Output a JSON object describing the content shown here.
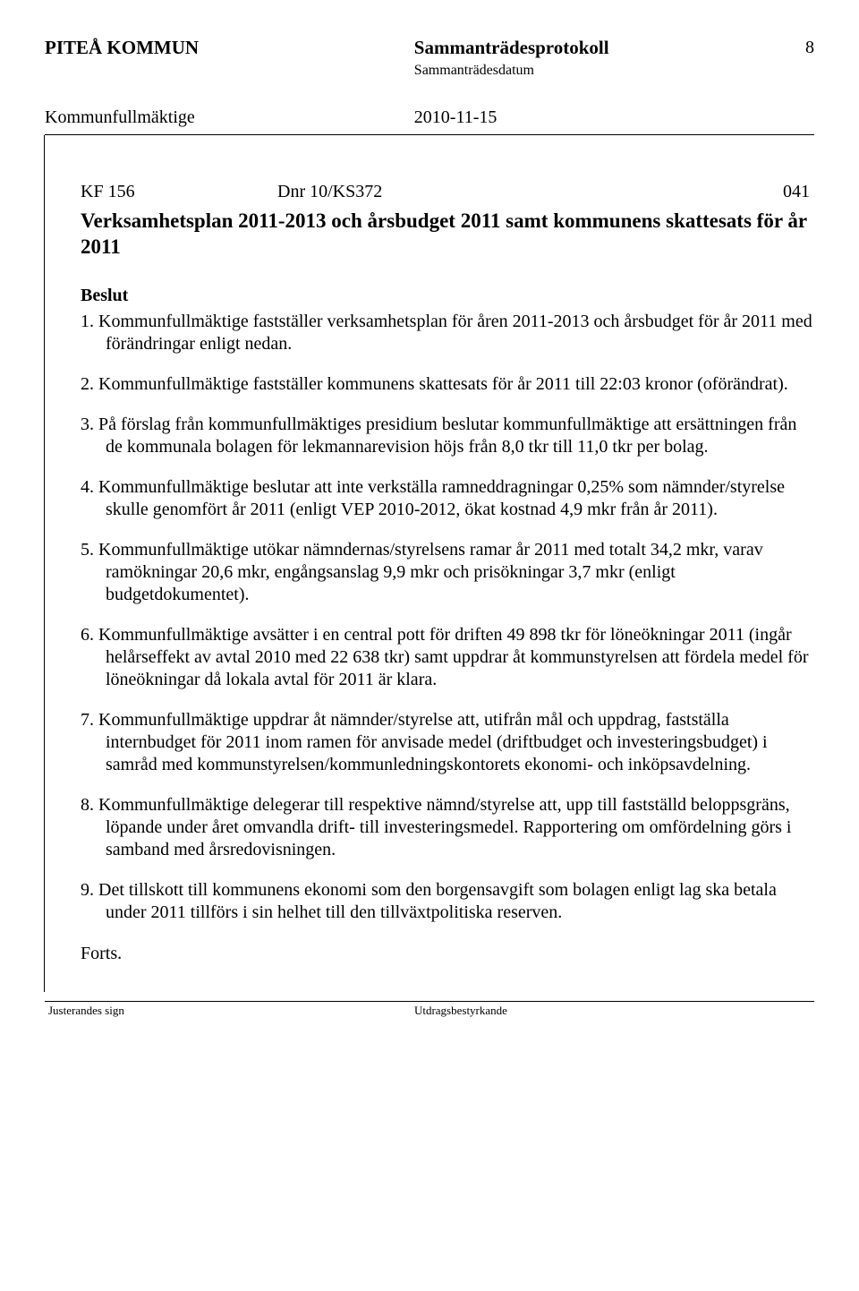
{
  "header": {
    "org": "PITEÅ KOMMUN",
    "doc_title": "Sammanträdesprotokoll",
    "page_num": "8",
    "date_label": "Sammanträdesdatum",
    "body": "Kommunfullmäktige",
    "date": "2010-11-15"
  },
  "meta": {
    "kf": "KF  156",
    "dnr": "Dnr 10/KS372",
    "code": "041"
  },
  "title": "Verksamhetsplan 2011-2013 och årsbudget 2011 samt kommunens skattesats för år 2011",
  "subhead": "Beslut",
  "items": [
    "1. Kommunfullmäktige fastställer verksamhetsplan för åren 2011-2013 och årsbudget för år 2011 med förändringar enligt nedan.",
    "2. Kommunfullmäktige fastställer kommunens skattesats för år 2011 till 22:03 kronor (oförändrat).",
    "3. På förslag från kommunfullmäktiges presidium beslutar kommunfullmäktige att ersättningen från de kommunala bolagen för lekmannarevision höjs från 8,0 tkr till 11,0 tkr per bolag.",
    "4. Kommunfullmäktige beslutar att inte verkställa ramneddragningar 0,25% som nämnder/styrelse skulle genomfört år 2011 (enligt VEP 2010-2012, ökat kostnad 4,9 mkr från år 2011).",
    "5. Kommunfullmäktige utökar nämndernas/styrelsens ramar år 2011 med totalt 34,2 mkr, varav ramökningar 20,6 mkr, engångsanslag 9,9 mkr och prisökningar 3,7 mkr (enligt budgetdokumentet).",
    "6. Kommunfullmäktige avsätter i en central pott för driften 49 898 tkr för löneökningar 2011 (ingår helårseffekt av avtal 2010 med 22 638 tkr) samt uppdrar åt kommunstyrelsen att fördela medel för löneökningar då lokala avtal för 2011 är klara.",
    "7. Kommunfullmäktige uppdrar åt nämnder/styrelse att, utifrån mål och uppdrag, fastställa internbudget för 2011 inom ramen för anvisade medel (driftbudget och investeringsbudget) i samråd med kommunstyrelsen/kommunledningskontorets ekonomi- och inköpsavdelning.",
    "8. Kommunfullmäktige delegerar till respektive nämnd/styrelse att, upp till fastställd beloppsgräns, löpande under året omvandla drift- till investeringsmedel. Rapportering om omfördelning görs i samband med årsredovisningen.",
    "9. Det tillskott till kommunens ekonomi som den borgensavgift som bolagen enligt lag ska betala under 2011 tillförs i sin helhet till den tillväxtpolitiska reserven."
  ],
  "forts": "Forts.",
  "footer": {
    "left": "Justerandes sign",
    "right": "Utdragsbestyrkande"
  }
}
